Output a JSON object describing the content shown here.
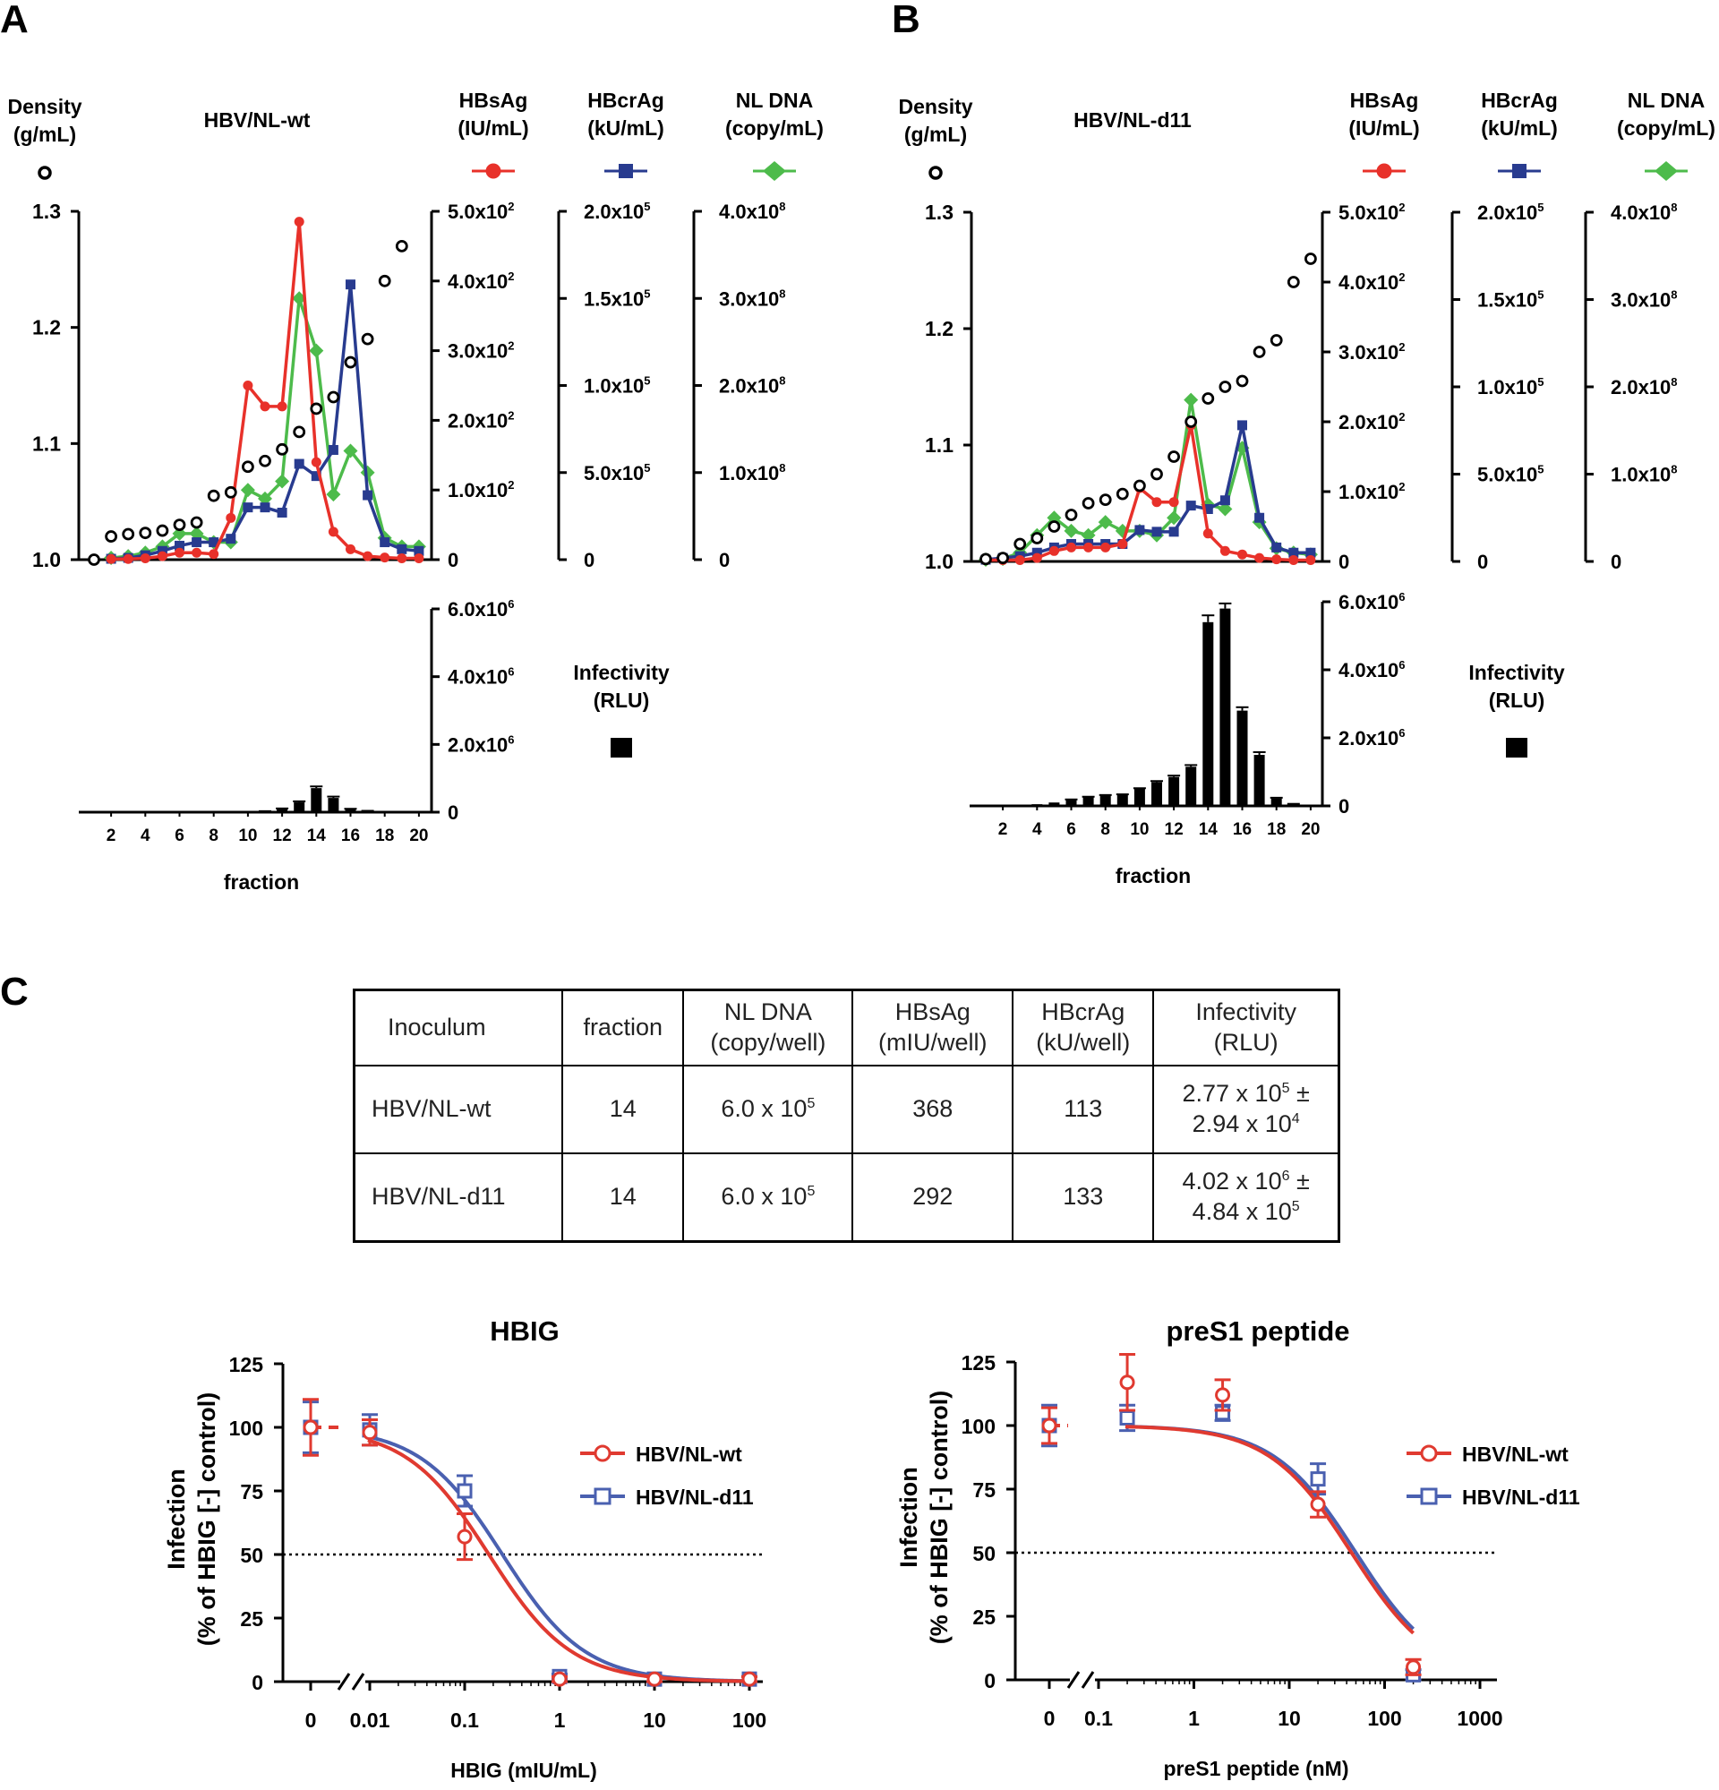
{
  "panel_letters": {
    "a": "A",
    "b": "B",
    "c": "C"
  },
  "axis_labels": {
    "density": "Density",
    "density_unit": "(g/mL)",
    "hbsag": "HBsAg",
    "hbsag_unit": "(IU/mL)",
    "hbcrag": "HBcrAg",
    "hbcrag_unit": "(kU/mL)",
    "nldna": "NL DNA",
    "nldna_unit": "(copy/mL)",
    "infectivity": "Infectivity",
    "infectivity_unit": "(RLU)",
    "fraction": "fraction"
  },
  "colors": {
    "hbsag": "#e8312a",
    "hbcrag": "#283b8f",
    "nldna": "#4dbb4b",
    "density": "#000000",
    "infect": "#000000",
    "wt": "#e03a30",
    "d11": "#4a60b0"
  },
  "table": {
    "headers": [
      "Inoculum",
      "fraction",
      "NL DNA",
      "(copy/well)",
      "HBsAg",
      "(mIU/well)",
      "HBcrAg",
      "(kU/well)",
      "Infectivity",
      "(RLU)"
    ],
    "rows": [
      {
        "inoculum": "HBV/NL-wt",
        "fraction": "14",
        "nl_dna": "6.0 x 10",
        "nl_dna_exp": "5",
        "hbsag": "368",
        "hbcrag": "113",
        "inf_a": "2.77 x 10",
        "inf_a_exp": "5",
        "inf_pm": "±",
        "inf_b": "2.94 x 10",
        "inf_b_exp": "4"
      },
      {
        "inoculum": "HBV/NL-d11",
        "fraction": "14",
        "nl_dna": "6.0 x 10",
        "nl_dna_exp": "5",
        "hbsag": "292",
        "hbcrag": "133",
        "inf_a": "4.02 x 10",
        "inf_a_exp": "6",
        "inf_pm": "±",
        "inf_b": "4.84 x 10",
        "inf_b_exp": "5"
      }
    ]
  },
  "chart_data": [
    {
      "id": "A",
      "type": "line",
      "title": "HBV/NL-wt",
      "xlabel": "fraction",
      "x": [
        1,
        2,
        3,
        4,
        5,
        6,
        7,
        8,
        9,
        10,
        11,
        12,
        13,
        14,
        15,
        16,
        17,
        18,
        19,
        20
      ],
      "x_ticks": [
        "2",
        "4",
        "6",
        "8",
        "10",
        "12",
        "14",
        "16",
        "18",
        "20"
      ],
      "density": {
        "name": "Density (g/mL)",
        "ylim": [
          1.0,
          1.3
        ],
        "ticks": [
          "1.0",
          "1.1",
          "1.2",
          "1.3"
        ],
        "values": [
          1.0,
          1.02,
          1.022,
          1.023,
          1.025,
          1.03,
          1.032,
          1.055,
          1.058,
          1.08,
          1.085,
          1.095,
          1.11,
          1.13,
          1.14,
          1.17,
          1.19,
          1.24,
          1.27,
          null
        ]
      },
      "hbsag": {
        "name": "HBsAg (IU/mL)",
        "ylim": [
          0,
          500
        ],
        "ticks": [
          "0",
          "1.0x10",
          "2.0x10",
          "3.0x10",
          "4.0x10",
          "5.0x10"
        ],
        "tick_exp": "2",
        "values": [
          null,
          1,
          1,
          2,
          5,
          10,
          10,
          8,
          60,
          250,
          220,
          220,
          485,
          140,
          40,
          15,
          5,
          3,
          2,
          2
        ]
      },
      "hbcrag": {
        "name": "HBcrAg (kU/mL)",
        "ylim": [
          0,
          200000
        ],
        "ticks": [
          "0",
          "5.0x10",
          "1.0x10",
          "1.5x10",
          "2.0x10"
        ],
        "tick_exp": "5",
        "values": [
          null,
          500,
          1000,
          2500,
          5000,
          8000,
          10000,
          10000,
          12000,
          30000,
          30000,
          27000,
          55000,
          48000,
          63000,
          158000,
          37000,
          10000,
          6000,
          5000
        ]
      },
      "nldna": {
        "name": "NL DNA (copy/mL)",
        "ylim": [
          0,
          400000000
        ],
        "ticks": [
          "0",
          "1.0x10",
          "2.0x10",
          "3.0x10",
          "4.0x10"
        ],
        "tick_exp": "8",
        "values": [
          null,
          2000000,
          4000000,
          8000000,
          15000000,
          30000000,
          30000000,
          20000000,
          20000000,
          80000000,
          70000000,
          90000000,
          300000000,
          240000000,
          75000000,
          125000000,
          100000000,
          25000000,
          15000000,
          15000000
        ]
      },
      "infectivity": {
        "name": "Infectivity (RLU)",
        "ylim": [
          0,
          6000000
        ],
        "ticks": [
          "0",
          "2.0x10",
          "4.0x10",
          "6.0x10"
        ],
        "tick_exp": "6",
        "values": [
          0,
          0,
          0,
          0,
          0,
          0,
          0,
          0,
          0,
          0,
          20000,
          90000,
          290000,
          710000,
          420000,
          80000,
          30000,
          0,
          0,
          0
        ],
        "errors": [
          0,
          0,
          0,
          0,
          0,
          0,
          0,
          0,
          0,
          0,
          10000,
          20000,
          30000,
          50000,
          40000,
          20000,
          10000,
          0,
          0,
          0
        ]
      }
    },
    {
      "id": "B",
      "type": "line",
      "title": "HBV/NL-d11",
      "xlabel": "fraction",
      "x": [
        1,
        2,
        3,
        4,
        5,
        6,
        7,
        8,
        9,
        10,
        11,
        12,
        13,
        14,
        15,
        16,
        17,
        18,
        19,
        20
      ],
      "x_ticks": [
        "2",
        "4",
        "6",
        "8",
        "10",
        "12",
        "14",
        "16",
        "18",
        "20"
      ],
      "density": {
        "name": "Density (g/mL)",
        "ylim": [
          1.0,
          1.3
        ],
        "ticks": [
          "1.0",
          "1.1",
          "1.2",
          "1.3"
        ],
        "values": [
          1.002,
          1.003,
          1.015,
          1.02,
          1.03,
          1.04,
          1.05,
          1.053,
          1.058,
          1.065,
          1.075,
          1.09,
          1.12,
          1.14,
          1.15,
          1.155,
          1.18,
          1.19,
          1.24,
          1.26
        ]
      },
      "hbsag": {
        "name": "HBsAg (IU/mL)",
        "ylim": [
          0,
          500
        ],
        "ticks": [
          "0",
          "1.0x10",
          "2.0x10",
          "3.0x10",
          "4.0x10",
          "5.0x10"
        ],
        "tick_exp": "2",
        "values": [
          2,
          2,
          2,
          5,
          15,
          20,
          20,
          20,
          25,
          105,
          85,
          85,
          195,
          40,
          15,
          10,
          5,
          3,
          2,
          2
        ]
      },
      "hbcrag": {
        "name": "HBcrAg (kU/mL)",
        "ylim": [
          0,
          200000
        ],
        "ticks": [
          "0",
          "5.0x10",
          "1.0x10",
          "1.5x10",
          "2.0x10"
        ],
        "tick_exp": "5",
        "values": [
          1000,
          2000,
          3000,
          5000,
          8000,
          10000,
          10000,
          10000,
          10000,
          18000,
          17000,
          17000,
          32000,
          30000,
          35000,
          78000,
          25000,
          8000,
          5000,
          5000
        ]
      },
      "nldna": {
        "name": "NL DNA (copy/mL)",
        "ylim": [
          0,
          400000000
        ],
        "ticks": [
          "0",
          "1.0x10",
          "2.0x10",
          "3.0x10",
          "4.0x10"
        ],
        "tick_exp": "8",
        "values": [
          2000000,
          3000000,
          10000000,
          30000000,
          50000000,
          35000000,
          30000000,
          45000000,
          35000000,
          35000000,
          30000000,
          50000000,
          185000000,
          65000000,
          60000000,
          130000000,
          45000000,
          15000000,
          10000000,
          8000000
        ]
      },
      "infectivity": {
        "name": "Infectivity (RLU)",
        "ylim": [
          0,
          6000000
        ],
        "ticks": [
          "0",
          "2.0x10",
          "4.0x10",
          "6.0x10"
        ],
        "tick_exp": "6",
        "values": [
          0,
          0,
          10000,
          50000,
          100000,
          180000,
          250000,
          300000,
          320000,
          500000,
          700000,
          850000,
          1150000,
          5400000,
          5800000,
          2800000,
          1500000,
          220000,
          50000,
          20000
        ],
        "errors": [
          0,
          0,
          0,
          0,
          0,
          10000,
          20000,
          20000,
          20000,
          20000,
          30000,
          40000,
          50000,
          200000,
          150000,
          100000,
          80000,
          20000,
          10000,
          0
        ]
      }
    },
    {
      "id": "C-left",
      "type": "line",
      "title": "HBIG",
      "xlabel": "HBIG (mIU/mL)",
      "ylabel_line1": "Infection",
      "ylabel_line2": "(% of HBIG [-] control)",
      "ylim": [
        0,
        125
      ],
      "y_ticks": [
        "0",
        "25",
        "50",
        "75",
        "100",
        "125"
      ],
      "x_ticks": [
        "0",
        "0.01",
        "0.1",
        "1",
        "10",
        "100"
      ],
      "reference_line": 50,
      "series": [
        {
          "name": "HBV/NL-wt",
          "x": [
            0,
            0.01,
            0.1,
            1,
            10,
            100
          ],
          "y": [
            100,
            98,
            57,
            1,
            1,
            1
          ],
          "error": [
            11,
            5,
            9,
            1,
            1,
            1
          ],
          "ic50": 0.18
        },
        {
          "name": "HBV/NL-d11",
          "x": [
            0,
            0.01,
            0.1,
            1,
            10,
            100
          ],
          "y": [
            100,
            99,
            75,
            2,
            1,
            1
          ],
          "error": [
            10,
            6,
            6,
            1,
            1,
            1
          ],
          "ic50": 0.25
        }
      ]
    },
    {
      "id": "C-right",
      "type": "line",
      "title": "preS1 peptide",
      "xlabel": "preS1 peptide (nM)",
      "ylabel_line1": "Infection",
      "ylabel_line2": "(% of HBIG [-] control)",
      "ylim": [
        0,
        125
      ],
      "y_ticks": [
        "0",
        "25",
        "50",
        "75",
        "100",
        "125"
      ],
      "x_ticks": [
        "0",
        "0.1",
        "1",
        "10",
        "100",
        "1000"
      ],
      "reference_line": 50,
      "series": [
        {
          "name": "HBV/NL-wt",
          "x": [
            0,
            0.2,
            2,
            20,
            200
          ],
          "y": [
            100,
            117,
            112,
            69,
            5
          ],
          "error": [
            7,
            11,
            6,
            5,
            3
          ],
          "ic50": 45
        },
        {
          "name": "HBV/NL-d11",
          "x": [
            0,
            0.2,
            2,
            20,
            200
          ],
          "y": [
            100,
            103,
            105,
            79,
            2
          ],
          "error": [
            8,
            5,
            3,
            6,
            2
          ],
          "ic50": 50
        }
      ]
    }
  ]
}
